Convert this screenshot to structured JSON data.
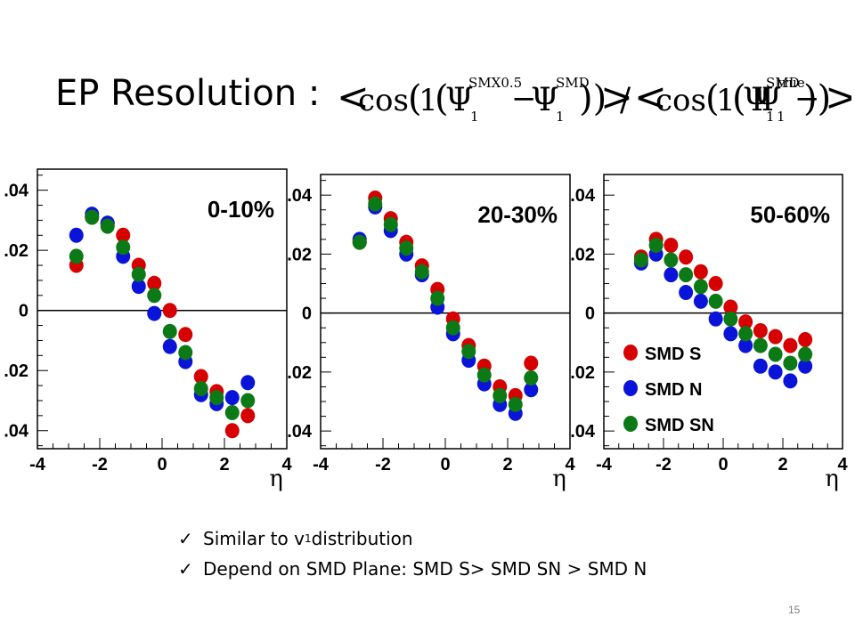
{
  "slide": {
    "title": "EP Resolution :",
    "formula": {
      "lhs_sup1": "SMX0.5",
      "lhs_sup2": "SMD",
      "rhs_sup1": "SMD",
      "rhs_sup2": "true",
      "cos": "cos",
      "psi": "Ψ",
      "sub": "1",
      "one": "1"
    },
    "bullets": [
      {
        "text": "Similar to v",
        "sub": "1",
        "tail": " distribution"
      },
      {
        "text": "Depend on SMD Plane: SMD S> SMD SN > SMD N"
      }
    ],
    "slide_number": "15"
  },
  "colors": {
    "smd_s": "#d60000",
    "smd_n": "#0a14d8",
    "smd_sn": "#0b7a16"
  },
  "chart_data": [
    {
      "type": "scatter",
      "title": "0-10%",
      "xlabel": "η",
      "x_ticks": [
        "-4",
        "-2",
        "0",
        "2",
        "4"
      ],
      "y_ticks": [
        ".04",
        ".02",
        "0",
        ".02",
        ".04"
      ],
      "xlim": [
        -4,
        4
      ],
      "ylim": [
        -0.046,
        0.047
      ],
      "legend": false,
      "series": [
        {
          "color_key": "smd_s",
          "x": [
            -2.75,
            -2.25,
            -1.75,
            -1.25,
            -0.75,
            -0.25,
            0.25,
            0.75,
            1.25,
            1.75,
            2.25,
            2.75
          ],
          "y": [
            0.015,
            0.031,
            0.029,
            0.025,
            0.015,
            0.009,
            0.0,
            -0.008,
            -0.022,
            -0.027,
            -0.04,
            -0.035
          ]
        },
        {
          "color_key": "smd_n",
          "x": [
            -2.75,
            -2.25,
            -1.75,
            -1.25,
            -0.75,
            -0.25,
            0.25,
            0.75,
            1.25,
            1.75,
            2.25,
            2.75
          ],
          "y": [
            0.025,
            0.032,
            0.029,
            0.018,
            0.008,
            -0.001,
            -0.012,
            -0.017,
            -0.028,
            -0.031,
            -0.029,
            -0.024
          ]
        },
        {
          "color_key": "smd_sn",
          "x": [
            -2.75,
            -2.25,
            -1.75,
            -1.25,
            -0.75,
            -0.25,
            0.25,
            0.75,
            1.25,
            1.75,
            2.25,
            2.75
          ],
          "y": [
            0.018,
            0.031,
            0.028,
            0.021,
            0.012,
            0.005,
            -0.007,
            -0.014,
            -0.026,
            -0.029,
            -0.034,
            -0.03
          ]
        }
      ]
    },
    {
      "type": "scatter",
      "title": "20-30%",
      "xlabel": "η",
      "x_ticks": [
        "-4",
        "-2",
        "0",
        "2",
        "4"
      ],
      "y_ticks": [
        ".04",
        ".02",
        "0",
        ".02",
        ".04"
      ],
      "xlim": [
        -4,
        4
      ],
      "ylim": [
        -0.046,
        0.047
      ],
      "legend": false,
      "series": [
        {
          "color_key": "smd_s",
          "x": [
            -2.75,
            -2.25,
            -1.75,
            -1.25,
            -0.75,
            -0.25,
            0.25,
            0.75,
            1.25,
            1.75,
            2.25,
            2.75
          ],
          "y": [
            0.024,
            0.039,
            0.032,
            0.024,
            0.016,
            0.008,
            -0.002,
            -0.011,
            -0.018,
            -0.025,
            -0.028,
            -0.017
          ]
        },
        {
          "color_key": "smd_n",
          "x": [
            -2.75,
            -2.25,
            -1.75,
            -1.25,
            -0.75,
            -0.25,
            0.25,
            0.75,
            1.25,
            1.75,
            2.25,
            2.75
          ],
          "y": [
            0.025,
            0.036,
            0.028,
            0.02,
            0.013,
            0.002,
            -0.007,
            -0.016,
            -0.024,
            -0.031,
            -0.034,
            -0.026
          ]
        },
        {
          "color_key": "smd_sn",
          "x": [
            -2.75,
            -2.25,
            -1.75,
            -1.25,
            -0.75,
            -0.25,
            0.25,
            0.75,
            1.25,
            1.75,
            2.25,
            2.75
          ],
          "y": [
            0.024,
            0.037,
            0.03,
            0.022,
            0.014,
            0.005,
            -0.005,
            -0.013,
            -0.021,
            -0.028,
            -0.031,
            -0.022
          ]
        }
      ]
    },
    {
      "type": "scatter",
      "title": "50-60%",
      "xlabel": "η",
      "x_ticks": [
        "-4",
        "-2",
        "0",
        "2",
        "4"
      ],
      "y_ticks": [
        ".04",
        ".02",
        "0",
        ".02",
        ".04"
      ],
      "xlim": [
        -4,
        4
      ],
      "ylim": [
        -0.046,
        0.047
      ],
      "legend": true,
      "legend_position": "bottom-left",
      "legend_labels": [
        "SMD  S",
        "SMD  N",
        "SMD SN"
      ],
      "series": [
        {
          "color_key": "smd_s",
          "x": [
            -2.75,
            -2.25,
            -1.75,
            -1.25,
            -0.75,
            -0.25,
            0.25,
            0.75,
            1.25,
            1.75,
            2.25,
            2.75
          ],
          "y": [
            0.019,
            0.025,
            0.023,
            0.019,
            0.014,
            0.01,
            0.002,
            -0.003,
            -0.006,
            -0.008,
            -0.011,
            -0.009
          ]
        },
        {
          "color_key": "smd_n",
          "x": [
            -2.75,
            -2.25,
            -1.75,
            -1.25,
            -0.75,
            -0.25,
            0.25,
            0.75,
            1.25,
            1.75,
            2.25,
            2.75
          ],
          "y": [
            0.017,
            0.02,
            0.013,
            0.007,
            0.004,
            -0.002,
            -0.007,
            -0.011,
            -0.018,
            -0.02,
            -0.023,
            -0.018
          ]
        },
        {
          "color_key": "smd_sn",
          "x": [
            -2.75,
            -2.25,
            -1.75,
            -1.25,
            -0.75,
            -0.25,
            0.25,
            0.75,
            1.25,
            1.75,
            2.25,
            2.75
          ],
          "y": [
            0.018,
            0.023,
            0.018,
            0.013,
            0.009,
            0.004,
            -0.002,
            -0.007,
            -0.011,
            -0.014,
            -0.017,
            -0.014
          ]
        }
      ]
    }
  ]
}
